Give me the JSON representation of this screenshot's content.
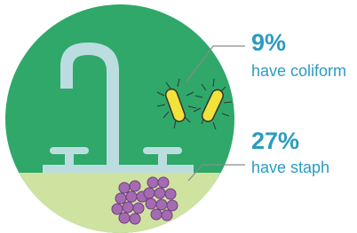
{
  "stats": [
    {
      "value": "9%",
      "label": "have coliform"
    },
    {
      "value": "27%",
      "label": "have staph"
    }
  ]
}
